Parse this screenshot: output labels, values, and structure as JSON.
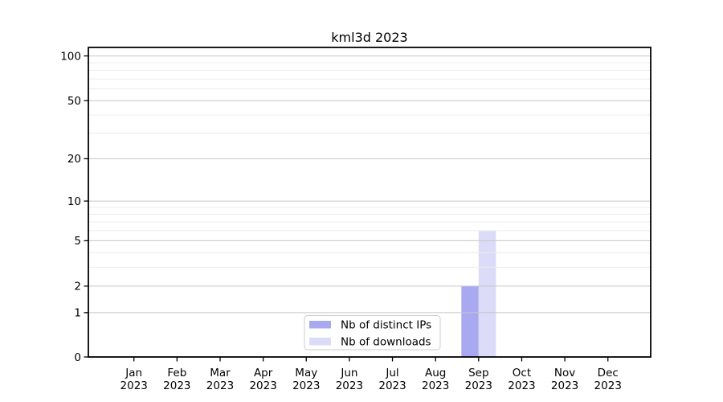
{
  "chart_data": {
    "type": "bar",
    "title": "kml3d 2023",
    "categories": [
      "Jan",
      "Feb",
      "Mar",
      "Apr",
      "May",
      "Jun",
      "Jul",
      "Aug",
      "Sep",
      "Oct",
      "Nov",
      "Dec"
    ],
    "year_label": "2023",
    "series": [
      {
        "name": "Nb of distinct IPs",
        "color": "#a9a9f1",
        "values": [
          0,
          0,
          0,
          0,
          0,
          0,
          0,
          0,
          2,
          0,
          0,
          0
        ]
      },
      {
        "name": "Nb of downloads",
        "color": "#dcdcf8",
        "values": [
          0,
          0,
          0,
          0,
          0,
          0,
          0,
          0,
          6,
          0,
          0,
          0
        ]
      }
    ],
    "xlabel": "",
    "ylabel": "",
    "yscale": "log1p",
    "ylim": [
      0,
      114
    ],
    "yticks": [
      0,
      1,
      2,
      5,
      10,
      20,
      50,
      100
    ],
    "minor_gridlines": [
      3,
      4,
      6,
      7,
      8,
      9,
      30,
      40,
      60,
      70,
      80,
      90
    ],
    "grid": true,
    "legend_position": "bottom-center",
    "colors": {
      "major_grid": "#c6c6c6",
      "minor_grid": "#ececec",
      "axis": "#000000",
      "text": "#000000",
      "legend_border": "#cccccc",
      "background": "#ffffff"
    }
  }
}
